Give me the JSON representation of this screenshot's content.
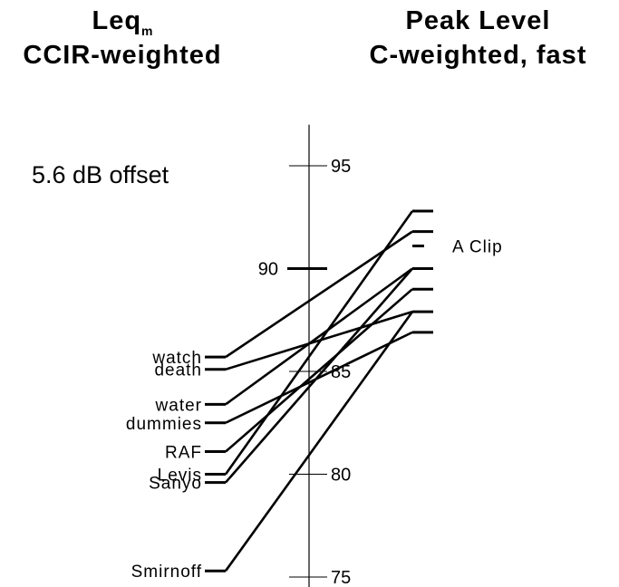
{
  "titles": {
    "left_main": "Leq",
    "left_sub": "m",
    "left_line2": "CCIR-weighted",
    "right_line1": "Peak Level",
    "right_line2": "C-weighted, fast"
  },
  "offset_note": "5.6 dB offset",
  "colors": {
    "line": "#000000",
    "background": "#ffffff"
  },
  "chart_data": {
    "type": "line",
    "description_type": "slope chart connecting two measurement scales",
    "axis": {
      "ylim": [
        74.5,
        97
      ],
      "ticks": [
        {
          "value": 95,
          "label": "95"
        },
        {
          "value": 90,
          "label": "90"
        },
        {
          "value": 85,
          "label": "85"
        },
        {
          "value": 80,
          "label": "80"
        },
        {
          "value": 75,
          "label": "75"
        }
      ]
    },
    "marker": {
      "label": "A Clip",
      "value": 91.1
    },
    "series": [
      {
        "name": "watch",
        "left": 85.7,
        "right": 91.8
      },
      {
        "name": "death",
        "left": 85.1,
        "right": 87.9
      },
      {
        "name": "water",
        "left": 83.4,
        "right": 90.0
      },
      {
        "name": "dummies",
        "left": 82.5,
        "right": 86.9
      },
      {
        "name": "RAF",
        "left": 81.1,
        "right": 89.0
      },
      {
        "name": "Levis",
        "left": 80.0,
        "right": 92.8
      },
      {
        "name": "Sanyo",
        "left": 79.6,
        "right": 90.0
      },
      {
        "name": "Smirnoff",
        "left": 75.3,
        "right": 87.9
      }
    ]
  }
}
